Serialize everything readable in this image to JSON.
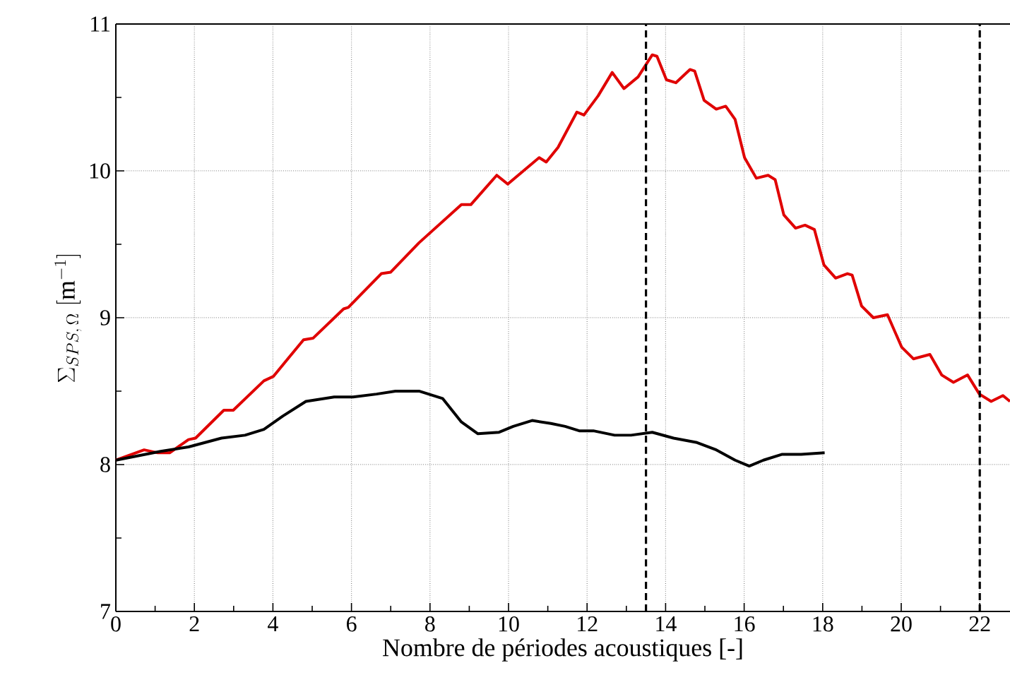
{
  "chart_data": {
    "type": "line",
    "xlabel": "Nombre de périodes acoustiques [-]",
    "ylabel": "\\Sigma_{SPS,\\,\\Omega}\\ [\\mathrm{m}^{-1}]",
    "xlim": [
      0,
      22.77
    ],
    "ylim": [
      7,
      11
    ],
    "xticks": [
      0,
      2,
      4,
      6,
      8,
      10,
      12,
      14,
      16,
      18,
      20,
      22
    ],
    "yticks": [
      7,
      8,
      9,
      10,
      11
    ],
    "grid": true,
    "marker": "none",
    "line_style": "solid",
    "series": [
      {
        "color": "#e00000",
        "x": [
          0,
          0.72,
          1.07,
          1.37,
          1.85,
          2.03,
          2.75,
          2.99,
          3.77,
          4.01,
          4.78,
          5.02,
          5.8,
          5.92,
          6.76,
          7.0,
          7.72,
          8.8,
          9.04,
          9.7,
          9.98,
          10.78,
          10.96,
          11.26,
          11.74,
          11.92,
          12.28,
          12.64,
          12.94,
          13.3,
          13.66,
          13.78,
          14.02,
          14.26,
          14.62,
          14.74,
          14.98,
          15.29,
          15.53,
          15.77,
          16.01,
          16.31,
          16.61,
          16.79,
          17.01,
          17.31,
          17.55,
          17.79,
          18.03,
          18.33,
          18.63,
          18.75,
          18.99,
          19.29,
          19.65,
          20.01,
          20.31,
          20.73,
          21.03,
          21.33,
          21.69,
          21.99,
          22.29,
          22.59,
          22.77
        ],
        "values": [
          8.03,
          8.1,
          8.08,
          8.08,
          8.17,
          8.18,
          8.37,
          8.37,
          8.57,
          8.6,
          8.85,
          8.86,
          9.06,
          9.07,
          9.3,
          9.31,
          9.51,
          9.77,
          9.77,
          9.97,
          9.91,
          10.09,
          10.06,
          10.16,
          10.4,
          10.38,
          10.51,
          10.67,
          10.56,
          10.64,
          10.79,
          10.78,
          10.62,
          10.6,
          10.69,
          10.68,
          10.48,
          10.42,
          10.44,
          10.35,
          10.09,
          9.95,
          9.97,
          9.94,
          9.7,
          9.61,
          9.63,
          9.6,
          9.36,
          9.27,
          9.3,
          9.29,
          9.08,
          9.0,
          9.02,
          8.8,
          8.72,
          8.75,
          8.61,
          8.56,
          8.61,
          8.48,
          8.43,
          8.47,
          8.43
        ]
      },
      {
        "color": "#000000",
        "x": [
          0,
          1.14,
          1.85,
          2.69,
          3.29,
          3.77,
          4.25,
          4.84,
          5.56,
          6.04,
          6.64,
          7.12,
          7.72,
          8.32,
          8.8,
          9.22,
          9.76,
          10.12,
          10.6,
          11.08,
          11.44,
          11.8,
          12.16,
          12.7,
          13.12,
          13.66,
          14.2,
          14.8,
          15.29,
          15.77,
          16.13,
          16.49,
          16.97,
          17.45,
          18.05
        ],
        "values": [
          8.03,
          8.09,
          8.12,
          8.18,
          8.2,
          8.24,
          8.33,
          8.43,
          8.46,
          8.46,
          8.48,
          8.5,
          8.5,
          8.45,
          8.29,
          8.21,
          8.22,
          8.26,
          8.3,
          8.28,
          8.26,
          8.23,
          8.23,
          8.2,
          8.2,
          8.22,
          8.18,
          8.15,
          8.1,
          8.03,
          7.99,
          8.03,
          8.07,
          8.07,
          8.08
        ]
      }
    ],
    "ref_lines": [
      {
        "axis": "x",
        "value": 13.5,
        "color": "#000000",
        "line_style": "dashed"
      },
      {
        "axis": "x",
        "value": 22,
        "color": "#000000",
        "line_style": "dashed"
      }
    ]
  }
}
